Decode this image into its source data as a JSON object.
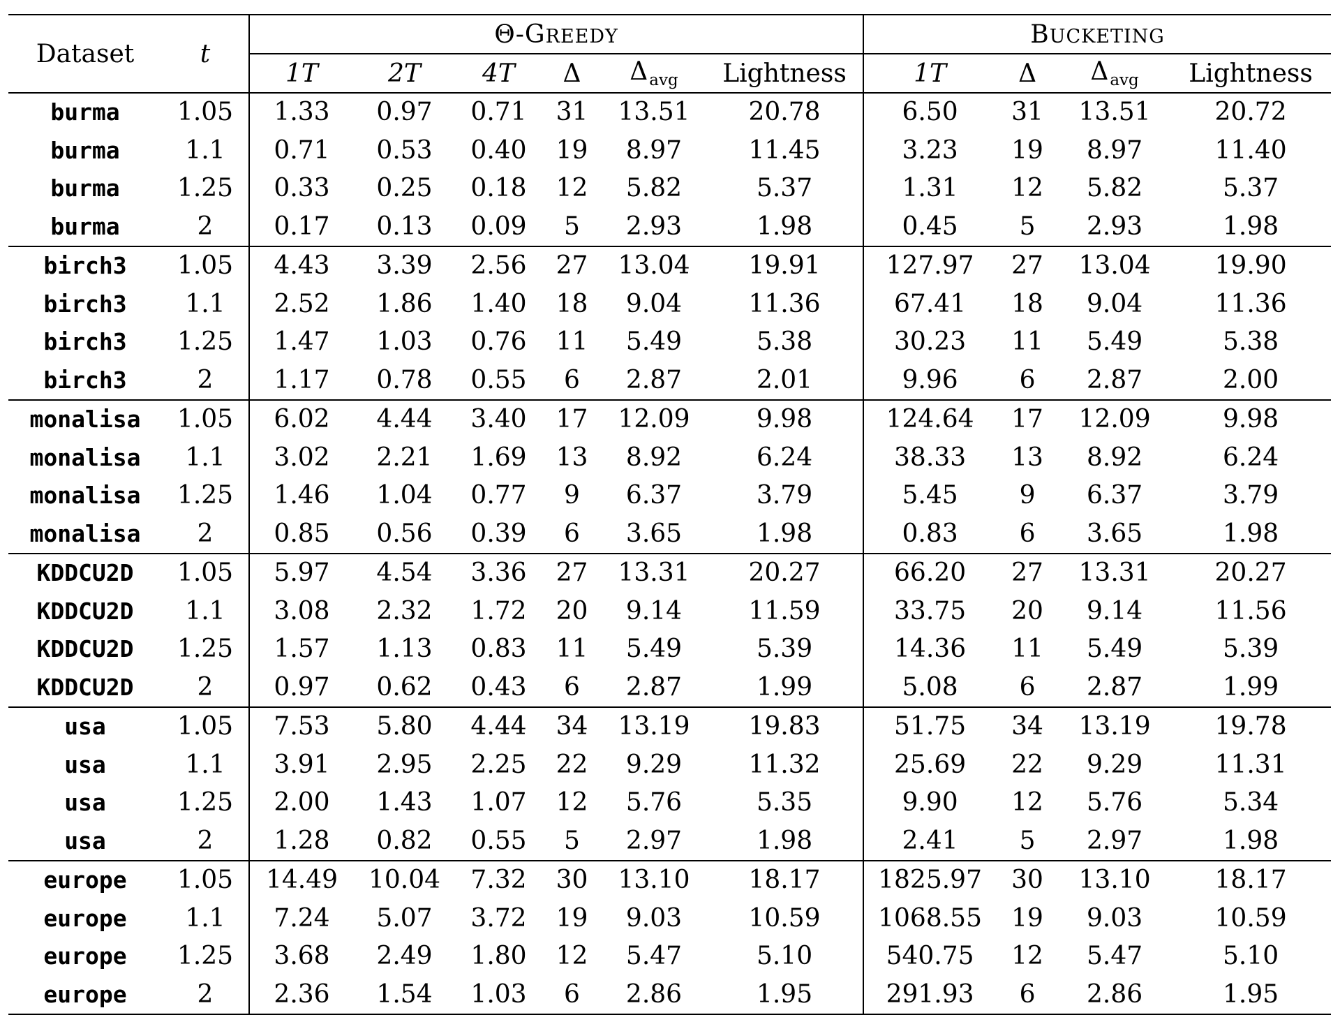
{
  "header": {
    "dataset_label": "Dataset",
    "t_label": "t",
    "group_greedy": {
      "theta": "Θ-",
      "cap": "G",
      "rest": "REEDY"
    },
    "group_bucketing": {
      "cap": "B",
      "rest": "UCKETING"
    },
    "greedy_cols": {
      "c1": "1T",
      "c2": "2T",
      "c3": "4T",
      "c4": "Δ",
      "c5_base": "Δ",
      "c5_sub": "avg",
      "c6": "Lightness"
    },
    "bucketing_cols": {
      "c1": "1T",
      "c2": "Δ",
      "c3_base": "Δ",
      "c3_sub": "avg",
      "c4": "Lightness"
    }
  },
  "rows": [
    [
      "burma",
      "1.05",
      "1.33",
      "0.97",
      "0.71",
      "31",
      "13.51",
      "20.78",
      "6.50",
      "31",
      "13.51",
      "20.72"
    ],
    [
      "burma",
      "1.1",
      "0.71",
      "0.53",
      "0.40",
      "19",
      "8.97",
      "11.45",
      "3.23",
      "19",
      "8.97",
      "11.40"
    ],
    [
      "burma",
      "1.25",
      "0.33",
      "0.25",
      "0.18",
      "12",
      "5.82",
      "5.37",
      "1.31",
      "12",
      "5.82",
      "5.37"
    ],
    [
      "burma",
      "2",
      "0.17",
      "0.13",
      "0.09",
      "5",
      "2.93",
      "1.98",
      "0.45",
      "5",
      "2.93",
      "1.98"
    ],
    [
      "birch3",
      "1.05",
      "4.43",
      "3.39",
      "2.56",
      "27",
      "13.04",
      "19.91",
      "127.97",
      "27",
      "13.04",
      "19.90"
    ],
    [
      "birch3",
      "1.1",
      "2.52",
      "1.86",
      "1.40",
      "18",
      "9.04",
      "11.36",
      "67.41",
      "18",
      "9.04",
      "11.36"
    ],
    [
      "birch3",
      "1.25",
      "1.47",
      "1.03",
      "0.76",
      "11",
      "5.49",
      "5.38",
      "30.23",
      "11",
      "5.49",
      "5.38"
    ],
    [
      "birch3",
      "2",
      "1.17",
      "0.78",
      "0.55",
      "6",
      "2.87",
      "2.01",
      "9.96",
      "6",
      "2.87",
      "2.00"
    ],
    [
      "monalisa",
      "1.05",
      "6.02",
      "4.44",
      "3.40",
      "17",
      "12.09",
      "9.98",
      "124.64",
      "17",
      "12.09",
      "9.98"
    ],
    [
      "monalisa",
      "1.1",
      "3.02",
      "2.21",
      "1.69",
      "13",
      "8.92",
      "6.24",
      "38.33",
      "13",
      "8.92",
      "6.24"
    ],
    [
      "monalisa",
      "1.25",
      "1.46",
      "1.04",
      "0.77",
      "9",
      "6.37",
      "3.79",
      "5.45",
      "9",
      "6.37",
      "3.79"
    ],
    [
      "monalisa",
      "2",
      "0.85",
      "0.56",
      "0.39",
      "6",
      "3.65",
      "1.98",
      "0.83",
      "6",
      "3.65",
      "1.98"
    ],
    [
      "KDDCU2D",
      "1.05",
      "5.97",
      "4.54",
      "3.36",
      "27",
      "13.31",
      "20.27",
      "66.20",
      "27",
      "13.31",
      "20.27"
    ],
    [
      "KDDCU2D",
      "1.1",
      "3.08",
      "2.32",
      "1.72",
      "20",
      "9.14",
      "11.59",
      "33.75",
      "20",
      "9.14",
      "11.56"
    ],
    [
      "KDDCU2D",
      "1.25",
      "1.57",
      "1.13",
      "0.83",
      "11",
      "5.49",
      "5.39",
      "14.36",
      "11",
      "5.49",
      "5.39"
    ],
    [
      "KDDCU2D",
      "2",
      "0.97",
      "0.62",
      "0.43",
      "6",
      "2.87",
      "1.99",
      "5.08",
      "6",
      "2.87",
      "1.99"
    ],
    [
      "usa",
      "1.05",
      "7.53",
      "5.80",
      "4.44",
      "34",
      "13.19",
      "19.83",
      "51.75",
      "34",
      "13.19",
      "19.78"
    ],
    [
      "usa",
      "1.1",
      "3.91",
      "2.95",
      "2.25",
      "22",
      "9.29",
      "11.32",
      "25.69",
      "22",
      "9.29",
      "11.31"
    ],
    [
      "usa",
      "1.25",
      "2.00",
      "1.43",
      "1.07",
      "12",
      "5.76",
      "5.35",
      "9.90",
      "12",
      "5.76",
      "5.34"
    ],
    [
      "usa",
      "2",
      "1.28",
      "0.82",
      "0.55",
      "5",
      "2.97",
      "1.98",
      "2.41",
      "5",
      "2.97",
      "1.98"
    ],
    [
      "europe",
      "1.05",
      "14.49",
      "10.04",
      "7.32",
      "30",
      "13.10",
      "18.17",
      "1825.97",
      "30",
      "13.10",
      "18.17"
    ],
    [
      "europe",
      "1.1",
      "7.24",
      "5.07",
      "3.72",
      "19",
      "9.03",
      "10.59",
      "1068.55",
      "19",
      "9.03",
      "10.59"
    ],
    [
      "europe",
      "1.25",
      "3.68",
      "2.49",
      "1.80",
      "12",
      "5.47",
      "5.10",
      "540.75",
      "12",
      "5.47",
      "5.10"
    ],
    [
      "europe",
      "2",
      "2.36",
      "1.54",
      "1.03",
      "6",
      "2.86",
      "1.95",
      "291.93",
      "6",
      "2.86",
      "1.95"
    ]
  ]
}
